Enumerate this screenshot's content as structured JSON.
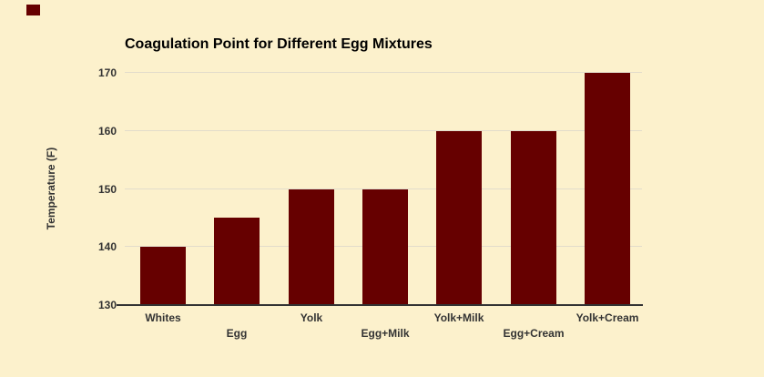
{
  "chart_data": {
    "type": "bar",
    "title": "Coagulation Point for Different Egg Mixtures",
    "categories": [
      "Whites",
      "Egg",
      "Yolk",
      "Egg+Milk",
      "Yolk+Milk",
      "Egg+Cream",
      "Yolk+Cream"
    ],
    "values": [
      140,
      145,
      150,
      150,
      160,
      160,
      170
    ],
    "xlabel": "",
    "ylabel": "Temperature (F)",
    "ylim": [
      130,
      170
    ],
    "yticks": [
      130,
      140,
      150,
      160,
      170
    ],
    "grid": true,
    "legend_position": "none",
    "colors": {
      "bar": "#660000",
      "background": "#FCF1CC",
      "gridline": "#E2DCCB",
      "axis_line": "#333333",
      "title_text": "#000000",
      "tick_text": "#333333"
    }
  }
}
